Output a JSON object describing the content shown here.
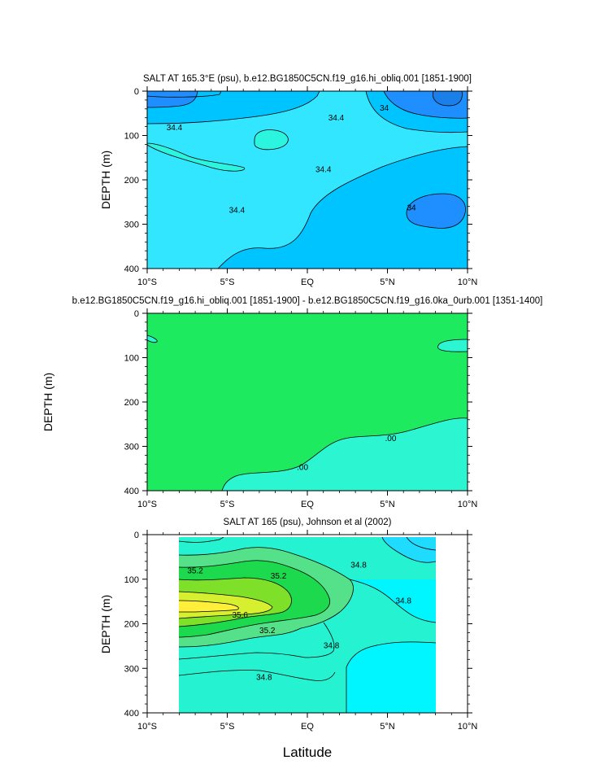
{
  "colors": {
    "fresh_dark": "#1f8fff",
    "fresh_mid": "#00c4ff",
    "fresh_light": "#33e6ff",
    "aqua_light": "#2cf5df",
    "diff_bg": "#1eea5f",
    "diff_low": "#2cf5d2",
    "salty_1": "#55e08a",
    "salty_2": "#1cd94d",
    "salty_3": "#7fe02a",
    "salty_4": "#d6ef2e",
    "salty_5": "#ffee3a",
    "base_aqua": "#24f2d0",
    "cyan": "#00f6ff"
  },
  "chart_data": [
    {
      "id": "top",
      "type": "contour",
      "title": "SALT AT 165.3°E (psu), b.e12.BG1850C5CN.f19_g16.hi_obliq.001 [1851-1900]",
      "ylabel": "DEPTH (m)",
      "xlabel": "",
      "xlim": [
        -10,
        10
      ],
      "ylim": [
        400,
        0
      ],
      "xticks": [
        -10,
        -5,
        0,
        5,
        10
      ],
      "xtick_labels": [
        "10°S",
        "5°S",
        "EQ",
        "5°N",
        "10°N"
      ],
      "yticks": [
        0,
        100,
        200,
        300,
        400
      ],
      "ytick_labels": [
        "0",
        "100",
        "200",
        "300",
        "400"
      ],
      "contour_labels": [
        {
          "text": "34.4",
          "lat": -8.3,
          "depth": 82
        },
        {
          "text": "34.4",
          "lat": 1.8,
          "depth": 60
        },
        {
          "text": "34",
          "lat": 4.8,
          "depth": 38
        },
        {
          "text": "34.4",
          "lat": 1.0,
          "depth": 176
        },
        {
          "text": "34.4",
          "lat": -4.4,
          "depth": 268
        },
        {
          "text": "34",
          "lat": 6.5,
          "depth": 262
        }
      ]
    },
    {
      "id": "middle",
      "type": "contour",
      "title": "b.e12.BG1850C5CN.f19_g16.hi_obliq.001 [1851-1900] - b.e12.BG1850C5CN.f19_g16.0ka_0urb.001 [1351-1400]",
      "ylabel": "DEPTH (m)",
      "xlabel": "",
      "xlim": [
        -10,
        10
      ],
      "ylim": [
        400,
        0
      ],
      "xticks": [
        -10,
        -5,
        0,
        5,
        10
      ],
      "xtick_labels": [
        "10°S",
        "5°S",
        "EQ",
        "5°N",
        "10°N"
      ],
      "yticks": [
        0,
        100,
        200,
        300,
        400
      ],
      "ytick_labels": [
        "0",
        "100",
        "200",
        "300",
        "400"
      ],
      "contour_labels": [
        {
          "text": ".00",
          "lat": 5.2,
          "depth": 282
        },
        {
          "text": ".00",
          "lat": -0.3,
          "depth": 347
        }
      ]
    },
    {
      "id": "bottom",
      "type": "contour",
      "title": "SALT AT 165 (psu), Johnson et al (2002)",
      "ylabel": "DEPTH (m)",
      "xlabel": "Latitude",
      "xlim": [
        -10,
        10
      ],
      "ylim": [
        400,
        0
      ],
      "xticks": [
        -10,
        -5,
        0,
        5,
        10
      ],
      "xtick_labels": [
        "10°S",
        "5°S",
        "EQ",
        "5°N",
        "10°N"
      ],
      "yticks": [
        0,
        100,
        200,
        300,
        400
      ],
      "ytick_labels": [
        "0",
        "100",
        "200",
        "300",
        "400"
      ],
      "data_lat_range": [
        -8,
        8
      ],
      "contour_labels": [
        {
          "text": "34.8",
          "lat": 3.2,
          "depth": 68
        },
        {
          "text": "35.2",
          "lat": -7.0,
          "depth": 80
        },
        {
          "text": "35.2",
          "lat": -1.8,
          "depth": 92
        },
        {
          "text": "34.8",
          "lat": 6.0,
          "depth": 148
        },
        {
          "text": "35.6",
          "lat": -4.2,
          "depth": 180
        },
        {
          "text": "35.2",
          "lat": -2.5,
          "depth": 215
        },
        {
          "text": "34.8",
          "lat": 1.5,
          "depth": 248
        },
        {
          "text": "34.8",
          "lat": -2.7,
          "depth": 320
        }
      ]
    }
  ]
}
